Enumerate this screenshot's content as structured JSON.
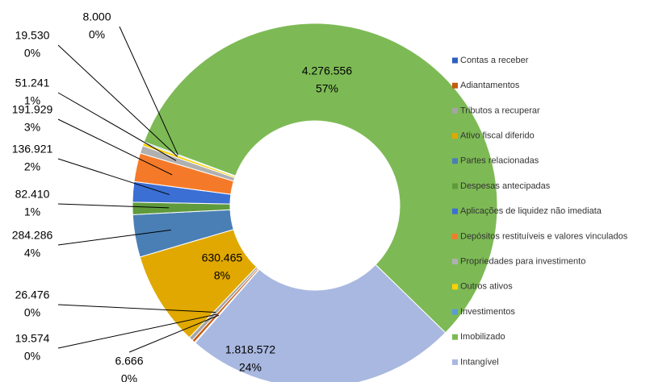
{
  "chart_data": {
    "type": "donut",
    "categories": [
      "Contas a receber",
      "Adiantamentos",
      "Tributos a recuperar",
      "Ativo fiscal diferido",
      "Partes relacionadas",
      "Despesas antecipadas",
      "Aplicações de liquidez não imediata",
      "Depósitos restituíveis e valores vinculados",
      "Propriedades para investimento",
      "Outros ativos",
      "Investimentos",
      "Imobilizado",
      "Intangível"
    ],
    "values": [
      6666,
      19574,
      26476,
      630465,
      284286,
      82410,
      136921,
      191929,
      51241,
      19530,
      8000,
      4276556,
      1818572
    ],
    "value_labels": [
      "6.666",
      "19.574",
      "26.476",
      "630.465",
      "284.286",
      "82.410",
      "136.921",
      "191.929",
      "51.241",
      "19.530",
      "8.000",
      "4.276.556",
      "1.818.572"
    ],
    "percents": [
      0,
      0,
      0,
      8,
      4,
      1,
      2,
      3,
      1,
      0,
      0,
      57,
      24
    ],
    "percent_labels": [
      "0%",
      "0%",
      "0%",
      "8%",
      "4%",
      "1%",
      "2%",
      "3%",
      "1%",
      "0%",
      "0%",
      "57%",
      "24%"
    ],
    "colors": [
      "#2e5fbf",
      "#c55a11",
      "#a5a5a5",
      "#e0a800",
      "#4a7fb5",
      "#5f9a3d",
      "#3b6fd4",
      "#f47a2a",
      "#b0b0b0",
      "#ffd000",
      "#5b9bd5",
      "#7dba55",
      "#a9b8e0"
    ],
    "legend": "right"
  }
}
